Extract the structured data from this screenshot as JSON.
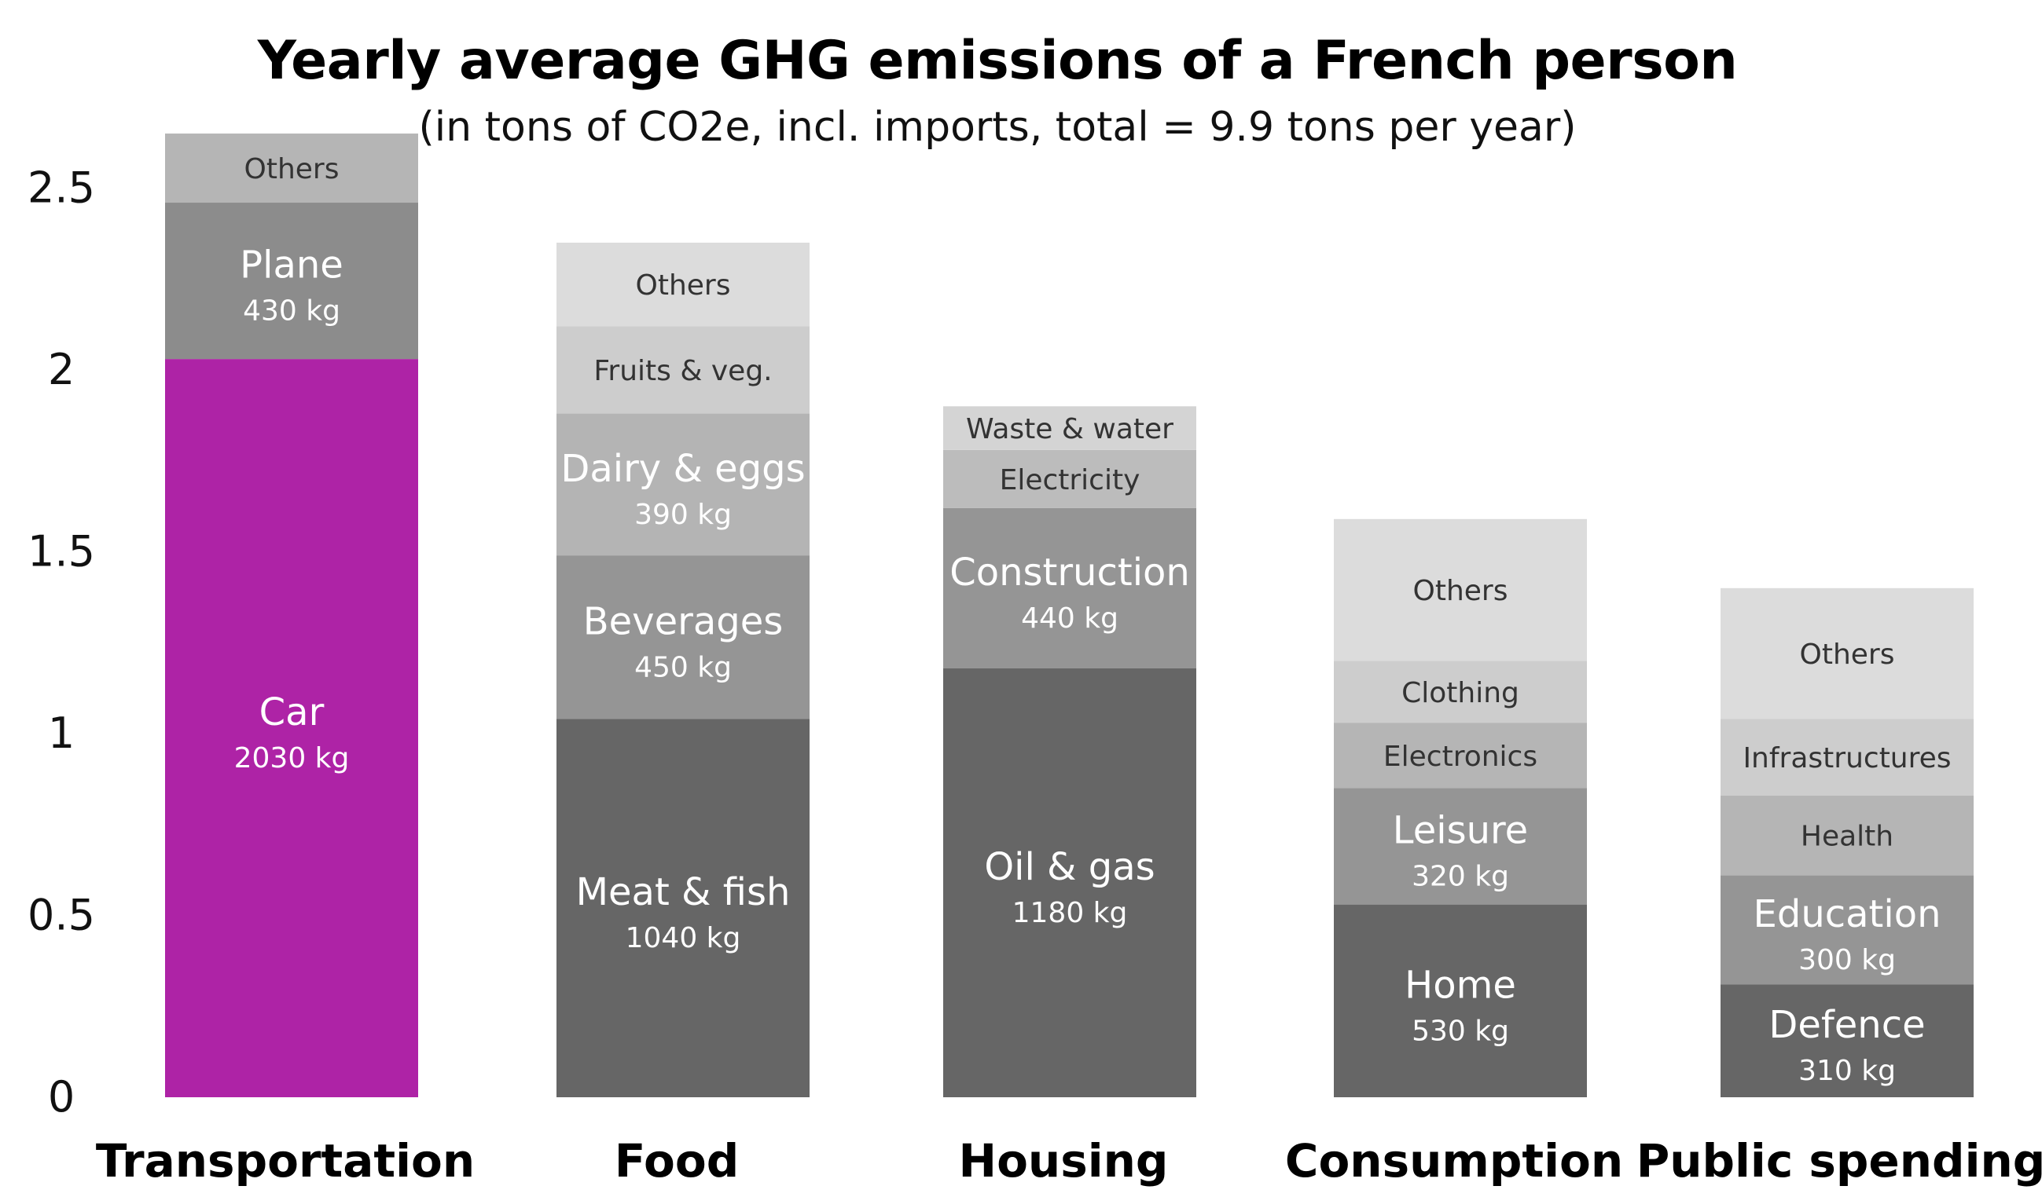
{
  "chart_data": {
    "type": "bar",
    "stacked": true,
    "title": "Yearly average GHG emissions of a French person",
    "subtitle": "(in tons of CO2e, incl. imports, total = 9.9 tons per year)",
    "ylim": [
      0,
      2.65
    ],
    "yticks": [
      {
        "value": 0,
        "label": "0"
      },
      {
        "value": 0.5,
        "label": "0.5"
      },
      {
        "value": 1,
        "label": "1"
      },
      {
        "value": 1.5,
        "label": "1.5"
      },
      {
        "value": 2,
        "label": "2"
      },
      {
        "value": 2.5,
        "label": "2.5"
      }
    ],
    "grid": false,
    "categories": [
      "Transportation",
      "Food",
      "Housing",
      "Consumption",
      "Public spending"
    ],
    "stacks": [
      {
        "category": "Transportation",
        "segments": [
          {
            "label": "Car",
            "value": 2.03,
            "value_label": "2030 kg",
            "color": "#ae23a6",
            "emphasis": true
          },
          {
            "label": "Plane",
            "value": 0.43,
            "value_label": "430 kg",
            "color": "#8c8c8c",
            "emphasis": true
          },
          {
            "label": "Others",
            "value": 0.19,
            "value_label": "",
            "color": "#b5b5b5",
            "emphasis": false
          }
        ]
      },
      {
        "category": "Food",
        "segments": [
          {
            "label": "Meat & fish",
            "value": 1.04,
            "value_label": "1040 kg",
            "color": "#666666",
            "emphasis": true
          },
          {
            "label": "Beverages",
            "value": 0.45,
            "value_label": "450 kg",
            "color": "#959595",
            "emphasis": true
          },
          {
            "label": "Dairy & eggs",
            "value": 0.39,
            "value_label": "390 kg",
            "color": "#b4b4b4",
            "emphasis": true
          },
          {
            "label": "Fruits & veg.",
            "value": 0.24,
            "value_label": "",
            "color": "#cdcdcd",
            "emphasis": false
          },
          {
            "label": "Others",
            "value": 0.23,
            "value_label": "",
            "color": "#dcdcdc",
            "emphasis": false
          }
        ]
      },
      {
        "category": "Housing",
        "segments": [
          {
            "label": "Oil & gas",
            "value": 1.18,
            "value_label": "1180 kg",
            "color": "#666666",
            "emphasis": true
          },
          {
            "label": "Construction",
            "value": 0.44,
            "value_label": "440 kg",
            "color": "#959595",
            "emphasis": true
          },
          {
            "label": "Electricity",
            "value": 0.16,
            "value_label": "",
            "color": "#bcbcbc",
            "emphasis": false
          },
          {
            "label": "Waste & water",
            "value": 0.12,
            "value_label": "",
            "color": "#d4d4d4",
            "emphasis": false
          }
        ]
      },
      {
        "category": "Consumption",
        "segments": [
          {
            "label": "Home",
            "value": 0.53,
            "value_label": "530 kg",
            "color": "#666666",
            "emphasis": true
          },
          {
            "label": "Leisure",
            "value": 0.32,
            "value_label": "320 kg",
            "color": "#959595",
            "emphasis": true
          },
          {
            "label": "Electronics",
            "value": 0.18,
            "value_label": "",
            "color": "#b5b5b5",
            "emphasis": false
          },
          {
            "label": "Clothing",
            "value": 0.17,
            "value_label": "",
            "color": "#cdcdcd",
            "emphasis": false
          },
          {
            "label": "Others",
            "value": 0.39,
            "value_label": "",
            "color": "#dcdcdc",
            "emphasis": false
          }
        ]
      },
      {
        "category": "Public spending",
        "segments": [
          {
            "label": "Defence",
            "value": 0.31,
            "value_label": "310 kg",
            "color": "#666666",
            "emphasis": true
          },
          {
            "label": "Education",
            "value": 0.3,
            "value_label": "300 kg",
            "color": "#959595",
            "emphasis": true
          },
          {
            "label": "Health",
            "value": 0.22,
            "value_label": "",
            "color": "#b5b5b5",
            "emphasis": false
          },
          {
            "label": "Infrastructures",
            "value": 0.21,
            "value_label": "",
            "color": "#cdcdcd",
            "emphasis": false
          },
          {
            "label": "Others",
            "value": 0.36,
            "value_label": "",
            "color": "#dcdcdc",
            "emphasis": false
          }
        ]
      }
    ]
  }
}
